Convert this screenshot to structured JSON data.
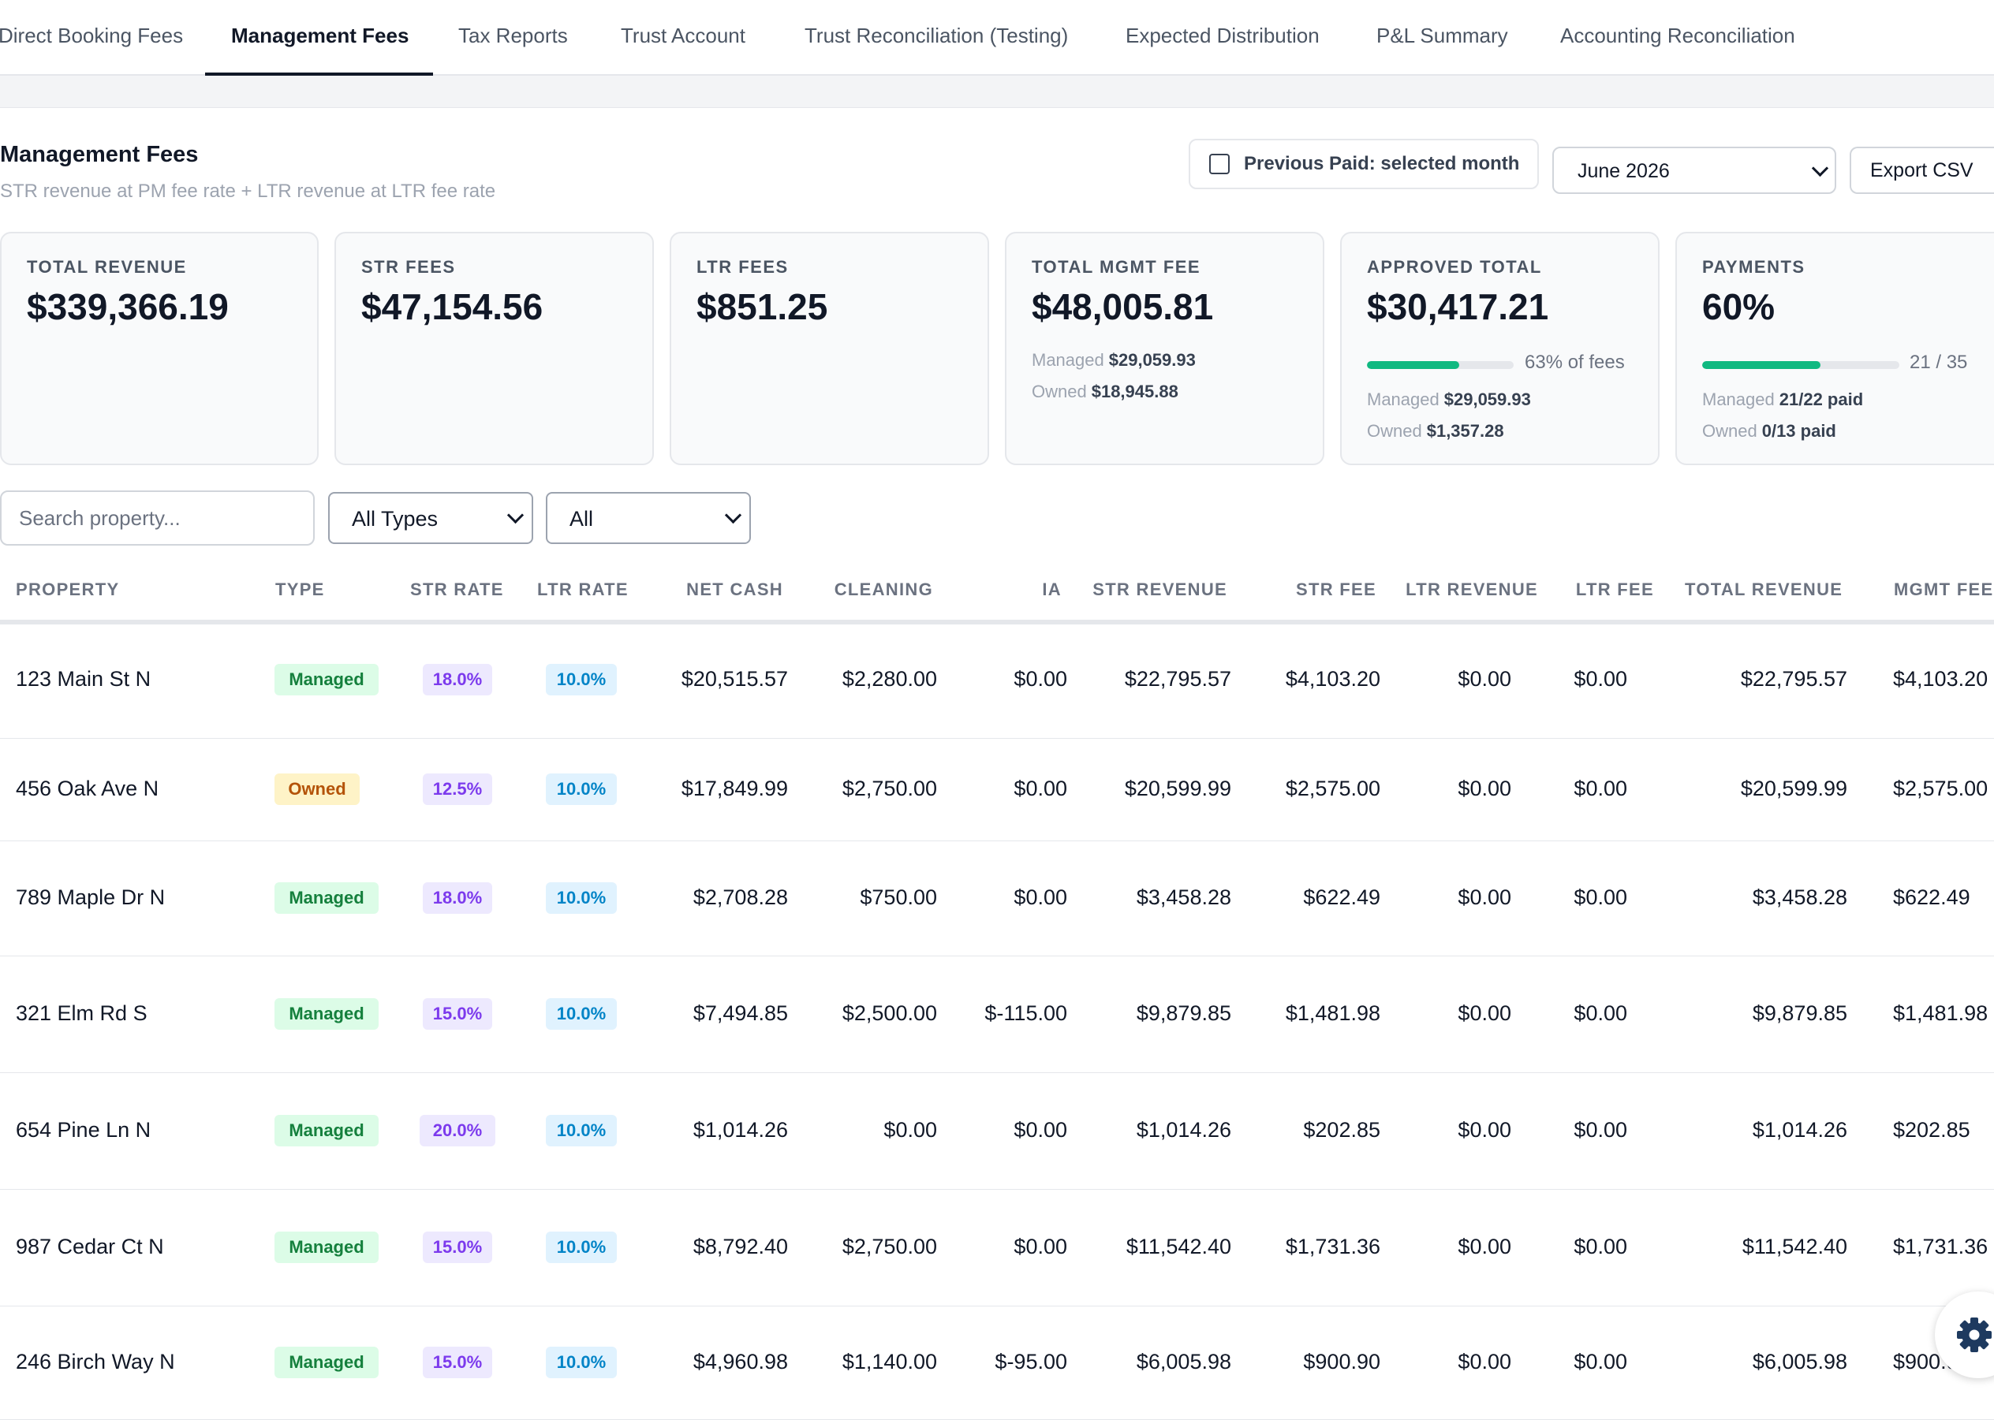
{
  "tabs": [
    {
      "label": "Direct Booking Fees",
      "active": false
    },
    {
      "label": "Management Fees",
      "active": true
    },
    {
      "label": "Tax Reports",
      "active": false
    },
    {
      "label": "Trust Account",
      "active": false
    },
    {
      "label": "Trust Reconciliation (Testing)",
      "active": false
    },
    {
      "label": "Expected Distribution",
      "active": false
    },
    {
      "label": "P&L Summary",
      "active": false
    },
    {
      "label": "Accounting Reconciliation",
      "active": false
    }
  ],
  "header": {
    "title": "Management Fees",
    "subtitle": "STR revenue at PM fee rate + LTR revenue at LTR fee rate",
    "previous_paid_label": "Previous Paid: selected month",
    "previous_paid_checked": false,
    "month_selected": "June 2026",
    "export_label": "Export CSV"
  },
  "cards": {
    "total_revenue": {
      "label": "TOTAL REVENUE",
      "value": "$339,366.19"
    },
    "str_fees": {
      "label": "STR FEES",
      "value": "$47,154.56"
    },
    "ltr_fees": {
      "label": "LTR FEES",
      "value": "$851.25"
    },
    "total_mgmt_fee": {
      "label": "TOTAL MGMT FEE",
      "value": "$48,005.81",
      "managed_label": "Managed",
      "managed_value": "$29,059.93",
      "owned_label": "Owned",
      "owned_value": "$18,945.88"
    },
    "approved_total": {
      "label": "APPROVED TOTAL",
      "value": "$30,417.21",
      "progress_fraction": 0.63,
      "progress_text": "63% of fees",
      "managed_label": "Managed",
      "managed_value": "$29,059.93",
      "owned_label": "Owned",
      "owned_value": "$1,357.28"
    },
    "payments": {
      "label": "PAYMENTS",
      "value": "60%",
      "progress_fraction": 0.6,
      "progress_text": "21 / 35",
      "managed_label": "Managed",
      "managed_value": "21/22 paid",
      "owned_label": "Owned",
      "owned_value": "0/13 paid"
    }
  },
  "filters": {
    "search_placeholder": "Search property...",
    "type_selected": "All Types",
    "status_selected": "All"
  },
  "table": {
    "columns": {
      "property": "PROPERTY",
      "type": "TYPE",
      "str_rate": "STR RATE",
      "ltr_rate": "LTR RATE",
      "net_cash": "NET CASH",
      "cleaning": "CLEANING",
      "ia": "IA",
      "str_revenue": "STR REVENUE",
      "str_fee": "STR FEE",
      "ltr_revenue": "LTR REVENUE",
      "ltr_fee": "LTR FEE",
      "total_revenue": "TOTAL REVENUE",
      "mgmt_fee": "MGMT FEE"
    },
    "rows": [
      {
        "property": "123 Main St N",
        "type": "Managed",
        "str_rate": "18.0%",
        "ltr_rate": "10.0%",
        "net_cash": "$20,515.57",
        "cleaning": "$2,280.00",
        "ia": "$0.00",
        "str_revenue": "$22,795.57",
        "str_fee": "$4,103.20",
        "ltr_revenue": "$0.00",
        "ltr_fee": "$0.00",
        "total_revenue": "$22,795.57",
        "mgmt_fee": "$4,103.20"
      },
      {
        "property": "456 Oak Ave N",
        "type": "Owned",
        "str_rate": "12.5%",
        "ltr_rate": "10.0%",
        "net_cash": "$17,849.99",
        "cleaning": "$2,750.00",
        "ia": "$0.00",
        "str_revenue": "$20,599.99",
        "str_fee": "$2,575.00",
        "ltr_revenue": "$0.00",
        "ltr_fee": "$0.00",
        "total_revenue": "$20,599.99",
        "mgmt_fee": "$2,575.00"
      },
      {
        "property": "789 Maple Dr N",
        "type": "Managed",
        "str_rate": "18.0%",
        "ltr_rate": "10.0%",
        "net_cash": "$2,708.28",
        "cleaning": "$750.00",
        "ia": "$0.00",
        "str_revenue": "$3,458.28",
        "str_fee": "$622.49",
        "ltr_revenue": "$0.00",
        "ltr_fee": "$0.00",
        "total_revenue": "$3,458.28",
        "mgmt_fee": "$622.49"
      },
      {
        "property": "321 Elm Rd S",
        "type": "Managed",
        "str_rate": "15.0%",
        "ltr_rate": "10.0%",
        "net_cash": "$7,494.85",
        "cleaning": "$2,500.00",
        "ia": "$-115.00",
        "str_revenue": "$9,879.85",
        "str_fee": "$1,481.98",
        "ltr_revenue": "$0.00",
        "ltr_fee": "$0.00",
        "total_revenue": "$9,879.85",
        "mgmt_fee": "$1,481.98"
      },
      {
        "property": "654 Pine Ln N",
        "type": "Managed",
        "str_rate": "20.0%",
        "ltr_rate": "10.0%",
        "net_cash": "$1,014.26",
        "cleaning": "$0.00",
        "ia": "$0.00",
        "str_revenue": "$1,014.26",
        "str_fee": "$202.85",
        "ltr_revenue": "$0.00",
        "ltr_fee": "$0.00",
        "total_revenue": "$1,014.26",
        "mgmt_fee": "$202.85"
      },
      {
        "property": "987 Cedar Ct N",
        "type": "Managed",
        "str_rate": "15.0%",
        "ltr_rate": "10.0%",
        "net_cash": "$8,792.40",
        "cleaning": "$2,750.00",
        "ia": "$0.00",
        "str_revenue": "$11,542.40",
        "str_fee": "$1,731.36",
        "ltr_revenue": "$0.00",
        "ltr_fee": "$0.00",
        "total_revenue": "$11,542.40",
        "mgmt_fee": "$1,731.36"
      },
      {
        "property": "246 Birch Way N",
        "type": "Managed",
        "str_rate": "15.0%",
        "ltr_rate": "10.0%",
        "net_cash": "$4,960.98",
        "cleaning": "$1,140.00",
        "ia": "$-95.00",
        "str_revenue": "$6,005.98",
        "str_fee": "$900.90",
        "ltr_revenue": "$0.00",
        "ltr_fee": "$0.00",
        "total_revenue": "$6,005.98",
        "mgmt_fee": "$900.90"
      }
    ]
  },
  "icons": {
    "settings": "gear-icon",
    "dropdown": "chevron-down-icon"
  },
  "colors": {
    "accent": "#111827",
    "progress": "#10b981",
    "managed_badge": "#15803d",
    "owned_badge": "#b45309",
    "str_badge": "#7c3aed",
    "ltr_badge": "#0284c7"
  }
}
